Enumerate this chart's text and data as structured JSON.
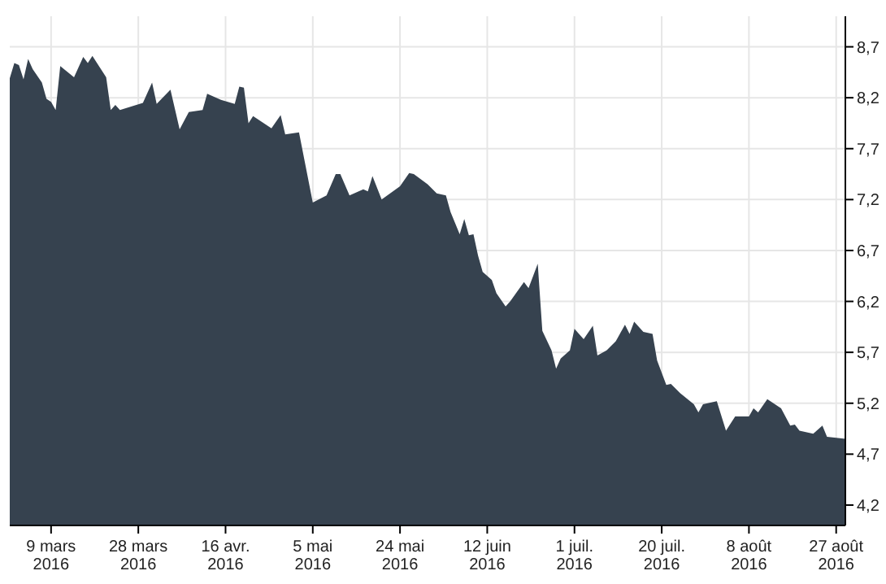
{
  "chart_data": {
    "type": "area",
    "x": [
      "2016-02-29",
      "2016-03-01",
      "2016-03-02",
      "2016-03-03",
      "2016-03-04",
      "2016-03-05",
      "2016-03-07",
      "2016-03-08",
      "2016-03-09",
      "2016-03-10",
      "2016-03-11",
      "2016-03-14",
      "2016-03-16",
      "2016-03-17",
      "2016-03-18",
      "2016-03-21",
      "2016-03-22",
      "2016-03-23",
      "2016-03-24",
      "2016-03-29",
      "2016-03-31",
      "2016-04-01",
      "2016-04-04",
      "2016-04-06",
      "2016-04-08",
      "2016-04-11",
      "2016-04-12",
      "2016-04-15",
      "2016-04-18",
      "2016-04-19",
      "2016-04-20",
      "2016-04-21",
      "2016-04-22",
      "2016-04-26",
      "2016-04-28",
      "2016-04-29",
      "2016-05-02",
      "2016-05-05",
      "2016-05-08",
      "2016-05-10",
      "2016-05-11",
      "2016-05-13",
      "2016-05-16",
      "2016-05-17",
      "2016-05-18",
      "2016-05-20",
      "2016-05-24",
      "2016-05-26",
      "2016-05-27",
      "2016-05-30",
      "2016-06-01",
      "2016-06-03",
      "2016-06-04",
      "2016-06-06",
      "2016-06-07",
      "2016-06-08",
      "2016-06-09",
      "2016-06-10",
      "2016-06-11",
      "2016-06-13",
      "2016-06-14",
      "2016-06-16",
      "2016-06-17",
      "2016-06-20",
      "2016-06-21",
      "2016-06-23",
      "2016-06-24",
      "2016-06-26",
      "2016-06-27",
      "2016-06-28",
      "2016-06-30",
      "2016-07-01",
      "2016-07-03",
      "2016-07-05",
      "2016-07-06",
      "2016-07-08",
      "2016-07-10",
      "2016-07-12",
      "2016-07-13",
      "2016-07-14",
      "2016-07-16",
      "2016-07-18",
      "2016-07-19",
      "2016-07-21",
      "2016-07-22",
      "2016-07-24",
      "2016-07-27",
      "2016-07-28",
      "2016-07-29",
      "2016-08-01",
      "2016-08-03",
      "2016-08-05",
      "2016-08-08",
      "2016-08-09",
      "2016-08-10",
      "2016-08-12",
      "2016-08-15",
      "2016-08-17",
      "2016-08-18",
      "2016-08-19",
      "2016-08-22",
      "2016-08-24",
      "2016-08-25",
      "2016-08-27",
      "2016-08-29"
    ],
    "series": [
      {
        "color": "#36424f",
        "values": [
          8.39,
          8.54,
          8.52,
          8.38,
          8.58,
          8.48,
          8.35,
          8.19,
          8.16,
          8.08,
          8.51,
          8.4,
          8.6,
          8.54,
          8.61,
          8.4,
          8.08,
          8.13,
          8.08,
          8.15,
          8.35,
          8.14,
          8.28,
          7.89,
          8.06,
          8.08,
          8.24,
          8.18,
          8.14,
          8.31,
          8.3,
          7.95,
          8.02,
          7.9,
          8.03,
          7.84,
          7.86,
          7.17,
          7.24,
          7.45,
          7.45,
          7.24,
          7.3,
          7.28,
          7.43,
          7.2,
          7.33,
          7.46,
          7.45,
          7.35,
          7.26,
          7.24,
          7.08,
          6.86,
          7.01,
          6.85,
          6.86,
          6.65,
          6.49,
          6.41,
          6.28,
          6.15,
          6.2,
          6.39,
          6.33,
          6.57,
          5.91,
          5.72,
          5.54,
          5.64,
          5.72,
          5.93,
          5.83,
          5.96,
          5.67,
          5.72,
          5.81,
          5.97,
          5.88,
          6.0,
          5.9,
          5.88,
          5.62,
          5.38,
          5.39,
          5.3,
          5.19,
          5.11,
          5.19,
          5.22,
          4.93,
          5.07,
          5.07,
          5.15,
          5.11,
          5.24,
          5.15,
          4.98,
          4.99,
          4.93,
          4.9,
          4.98,
          4.87,
          4.86,
          4.85
        ]
      }
    ],
    "xlim": [
      "2016-02-29",
      "2016-08-29"
    ],
    "xticks": [
      {
        "value": "2016-03-09",
        "label": "9 mars 2016"
      },
      {
        "value": "2016-03-28",
        "label": "28 mars 2016"
      },
      {
        "value": "2016-04-16",
        "label": "16 avr. 2016"
      },
      {
        "value": "2016-05-05",
        "label": "5 mai 2016"
      },
      {
        "value": "2016-05-24",
        "label": "24 mai 2016"
      },
      {
        "value": "2016-06-12",
        "label": "12 juin 2016"
      },
      {
        "value": "2016-07-01",
        "label": "1 juil. 2016"
      },
      {
        "value": "2016-07-20",
        "label": "20 juil. 2016"
      },
      {
        "value": "2016-08-08",
        "label": "8 août 2016"
      },
      {
        "value": "2016-08-27",
        "label": "27 août 2016"
      }
    ],
    "ylim": [
      4.0,
      9.0
    ],
    "yticks": [
      {
        "value": 4.2,
        "label": "4,2"
      },
      {
        "value": 4.7,
        "label": "4,7"
      },
      {
        "value": 5.2,
        "label": "5,2"
      },
      {
        "value": 5.7,
        "label": "5,7"
      },
      {
        "value": 6.2,
        "label": "6,2"
      },
      {
        "value": 6.7,
        "label": "6,7"
      },
      {
        "value": 7.2,
        "label": "7,2"
      },
      {
        "value": 7.7,
        "label": "7,7"
      },
      {
        "value": 8.2,
        "label": "8,2"
      },
      {
        "value": 8.7,
        "label": "8,7"
      }
    ],
    "grid": true
  }
}
